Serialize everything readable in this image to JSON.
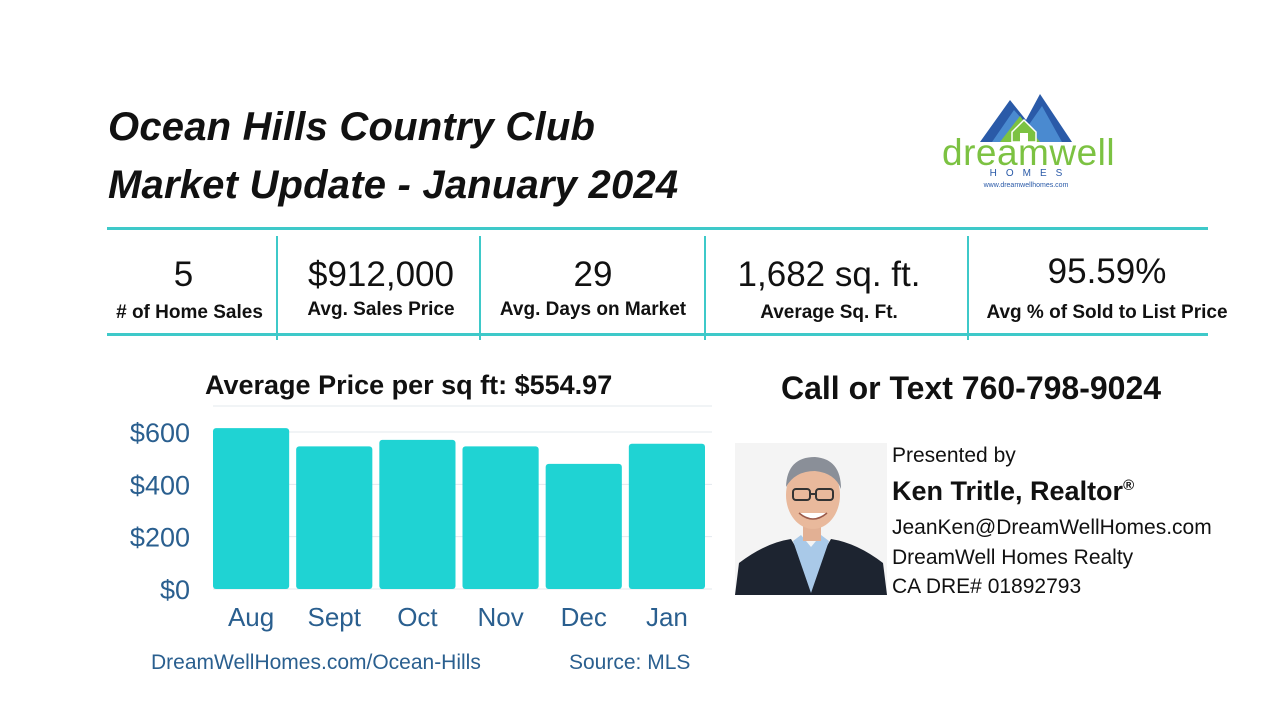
{
  "title": {
    "line1": "Ocean Hills Country Club",
    "line2": "Market Update - January 2024"
  },
  "logo": {
    "brand": "dreamwell",
    "sub": "HOMES",
    "url": "www.dreamwellhomes.com"
  },
  "stats": [
    {
      "value": "5",
      "label": "# of Home Sales"
    },
    {
      "value": "$912,000",
      "label": "Avg. Sales Price"
    },
    {
      "value": "29",
      "label": "Avg. Days on Market"
    },
    {
      "value": "1,682 sq. ft.",
      "label": "Average  Sq. Ft."
    },
    {
      "value": "95.59%",
      "label": "Avg % of Sold to List Price"
    }
  ],
  "chart_data": {
    "type": "bar",
    "title": "Average Price per sq ft: $554.97",
    "categories": [
      "Aug",
      "Sept",
      "Oct",
      "Nov",
      "Dec",
      "Jan"
    ],
    "values": [
      615,
      545,
      570,
      545,
      478,
      555
    ],
    "ylim": [
      0,
      600
    ],
    "yticks": [
      "$600",
      "$400",
      "$200",
      "$0"
    ],
    "grid": true,
    "bar_color": "#1fd3d3",
    "tick_color": "#2a5f8f"
  },
  "footer": {
    "url": "DreamWellHomes.com/Ocean-Hills",
    "source": "Source: MLS"
  },
  "call": "Call or Text 760-798-9024",
  "contact": {
    "presented": "Presented by",
    "name": "Ken Tritle, Realtor",
    "name_mark": "®",
    "email": "JeanKen@DreamWellHomes.com",
    "company": "DreamWell Homes Realty",
    "dre": "CA DRE# 01892793"
  },
  "colors": {
    "accent": "#3ec9c9",
    "logo_green": "#7cc242",
    "logo_blue": "#2a5aa8"
  }
}
